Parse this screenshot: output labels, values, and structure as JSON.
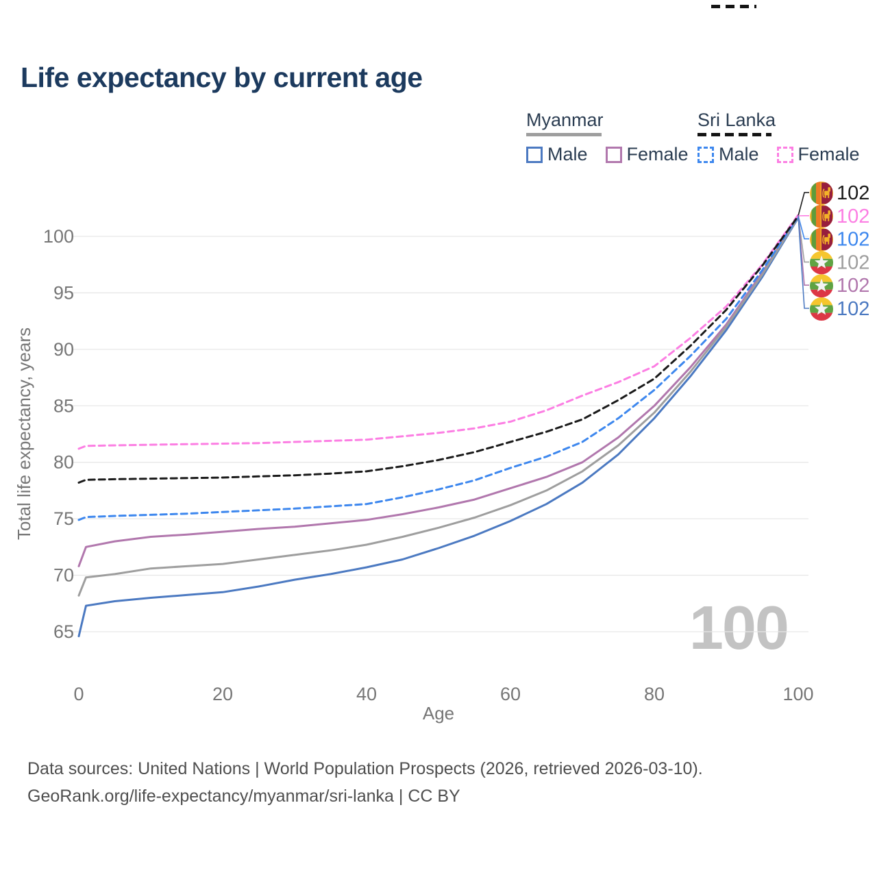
{
  "page": {
    "title": "Life expectancy by current age",
    "watermark": "100",
    "footer": {
      "line1": "Data sources: United Nations | World Population Prospects (2026, retrieved 2026-03-10).",
      "line2": "GeoRank.org/life-expectancy/myanmar/sri-lanka | CC BY"
    }
  },
  "legend": {
    "myanmar": {
      "label": "Myanmar",
      "male": "Male",
      "female": "Female",
      "male_color": "#4b79c1",
      "female_color": "#b177ad",
      "header_line_color": "#9e9e9e",
      "line_style": "solid"
    },
    "sri_lanka": {
      "label": "Sri Lanka",
      "male": "Male",
      "female": "Female",
      "male_color": "#3d87ee",
      "female_color": "#fc7ee3",
      "header_line_color": "#141414",
      "line_style": "dashed"
    }
  },
  "chart_data": {
    "type": "line",
    "title": "Life expectancy by current age",
    "xlabel": "Age",
    "ylabel": "Total life expectancy, years",
    "x_ticks": [
      0,
      20,
      40,
      60,
      80,
      100
    ],
    "y_ticks": [
      65,
      70,
      75,
      80,
      85,
      90,
      95,
      100
    ],
    "xlim": [
      0,
      100
    ],
    "ylim": [
      63.5,
      103
    ],
    "grid": "horizontal-only",
    "legend_position": "top-right",
    "x": [
      0,
      1,
      5,
      10,
      15,
      20,
      25,
      30,
      35,
      40,
      45,
      50,
      55,
      60,
      65,
      70,
      75,
      80,
      85,
      90,
      95,
      100
    ],
    "series": [
      {
        "name": "Sri Lanka Total",
        "country": "Sri Lanka",
        "flag": "srilanka",
        "dash": true,
        "color": "#1a1a1a",
        "end_label": "102",
        "values": [
          78.2,
          78.45,
          78.5,
          78.55,
          78.6,
          78.65,
          78.75,
          78.85,
          79.0,
          79.2,
          79.65,
          80.2,
          80.9,
          81.8,
          82.7,
          83.8,
          85.5,
          87.4,
          90.3,
          93.5,
          97.4,
          101.8
        ]
      },
      {
        "name": "Sri Lanka Female",
        "country": "Sri Lanka",
        "flag": "srilanka",
        "dash": true,
        "color": "#fc7ee3",
        "end_label": "102",
        "values": [
          81.2,
          81.45,
          81.5,
          81.55,
          81.6,
          81.65,
          81.7,
          81.8,
          81.9,
          82.0,
          82.3,
          82.6,
          83.0,
          83.6,
          84.6,
          85.9,
          87.1,
          88.5,
          91.0,
          93.8,
          97.5,
          101.9
        ]
      },
      {
        "name": "Sri Lanka Male",
        "country": "Sri Lanka",
        "flag": "srilanka",
        "dash": true,
        "color": "#3d87ee",
        "end_label": "102",
        "values": [
          74.9,
          75.15,
          75.25,
          75.35,
          75.45,
          75.6,
          75.75,
          75.9,
          76.1,
          76.3,
          76.9,
          77.6,
          78.4,
          79.5,
          80.5,
          81.8,
          83.9,
          86.4,
          89.4,
          92.7,
          97.0,
          101.75
        ]
      },
      {
        "name": "Myanmar Total",
        "country": "Myanmar",
        "flag": "myanmar",
        "dash": false,
        "color": "#9e9e9e",
        "end_label": "102",
        "values": [
          68.2,
          69.8,
          70.1,
          70.6,
          70.8,
          71.0,
          71.4,
          71.8,
          72.2,
          72.7,
          73.4,
          74.2,
          75.1,
          76.2,
          77.5,
          79.2,
          81.5,
          84.4,
          88.0,
          92.0,
          96.6,
          101.7
        ]
      },
      {
        "name": "Myanmar Female",
        "country": "Myanmar",
        "flag": "myanmar",
        "dash": false,
        "color": "#b177ad",
        "end_label": "102",
        "values": [
          70.8,
          72.5,
          73.0,
          73.4,
          73.6,
          73.85,
          74.1,
          74.3,
          74.6,
          74.9,
          75.4,
          76.0,
          76.7,
          77.7,
          78.7,
          80.0,
          82.2,
          85.0,
          88.4,
          92.2,
          96.8,
          101.75
        ]
      },
      {
        "name": "Myanmar Male",
        "country": "Myanmar",
        "flag": "myanmar",
        "dash": false,
        "color": "#4b79c1",
        "end_label": "102",
        "values": [
          64.6,
          67.3,
          67.7,
          68.0,
          68.25,
          68.5,
          69.0,
          69.6,
          70.1,
          70.7,
          71.4,
          72.4,
          73.5,
          74.8,
          76.3,
          78.2,
          80.7,
          83.9,
          87.6,
          91.7,
          96.4,
          101.65
        ]
      }
    ]
  }
}
